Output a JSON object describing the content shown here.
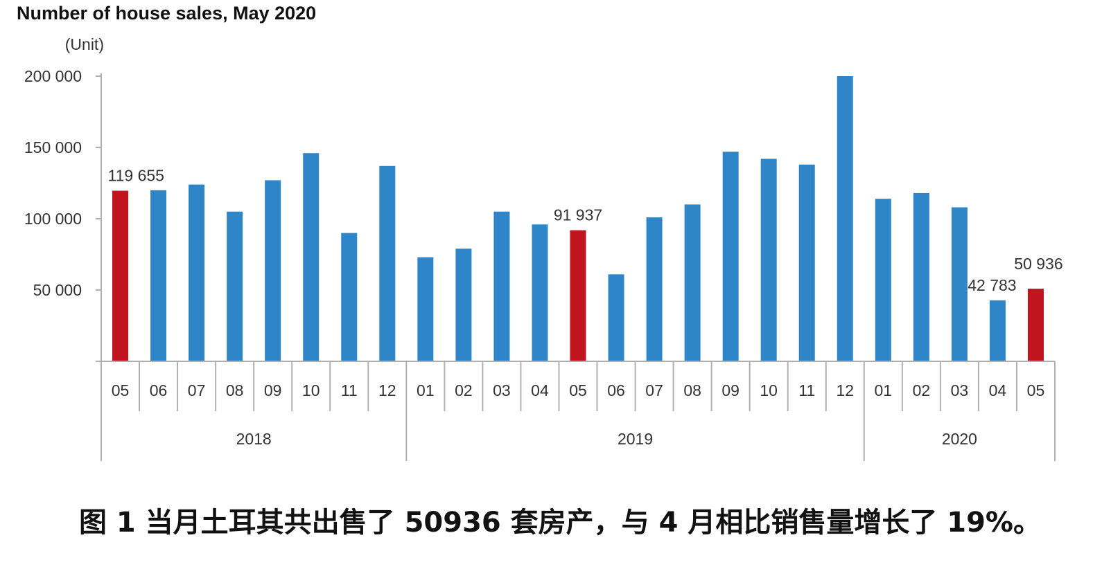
{
  "chart_data": {
    "type": "bar",
    "title": "Number of house sales, May 2020",
    "unit_label": "(Unit)",
    "ylim": [
      0,
      200000
    ],
    "yticks": [
      {
        "value": 50000,
        "label": "50 000"
      },
      {
        "value": 100000,
        "label": "100 000"
      },
      {
        "value": 150000,
        "label": "150 000"
      },
      {
        "value": 200000,
        "label": "200 000"
      }
    ],
    "categories": [
      "05",
      "06",
      "07",
      "08",
      "09",
      "10",
      "11",
      "12",
      "01",
      "02",
      "03",
      "04",
      "05",
      "06",
      "07",
      "08",
      "09",
      "10",
      "11",
      "12",
      "01",
      "02",
      "03",
      "04",
      "05"
    ],
    "values": [
      119655,
      120000,
      124000,
      105000,
      127000,
      146000,
      90000,
      137000,
      73000,
      79000,
      105000,
      96000,
      91937,
      61000,
      101000,
      110000,
      147000,
      142000,
      138000,
      200000,
      114000,
      118000,
      108000,
      42783,
      50936
    ],
    "highlight": [
      true,
      false,
      false,
      false,
      false,
      false,
      false,
      false,
      false,
      false,
      false,
      false,
      true,
      false,
      false,
      false,
      false,
      false,
      false,
      false,
      false,
      false,
      false,
      false,
      true
    ],
    "year_groups": [
      {
        "label": "2018",
        "count": 8
      },
      {
        "label": "2019",
        "count": 12
      },
      {
        "label": "2020",
        "count": 5
      }
    ],
    "data_labels": [
      {
        "index": 0,
        "text": "119 655"
      },
      {
        "index": 12,
        "text": "91 937"
      },
      {
        "index": 23,
        "text": "42 783"
      },
      {
        "index": 24,
        "text": "50 936"
      }
    ],
    "colors": {
      "bar": "#2e86c9",
      "highlight": "#c0141e",
      "axis": "#b0b0b0"
    }
  },
  "caption": "图 1 当月土耳其共出售了 50936 套房产，与 4 月相比销售量增长了 19%。"
}
